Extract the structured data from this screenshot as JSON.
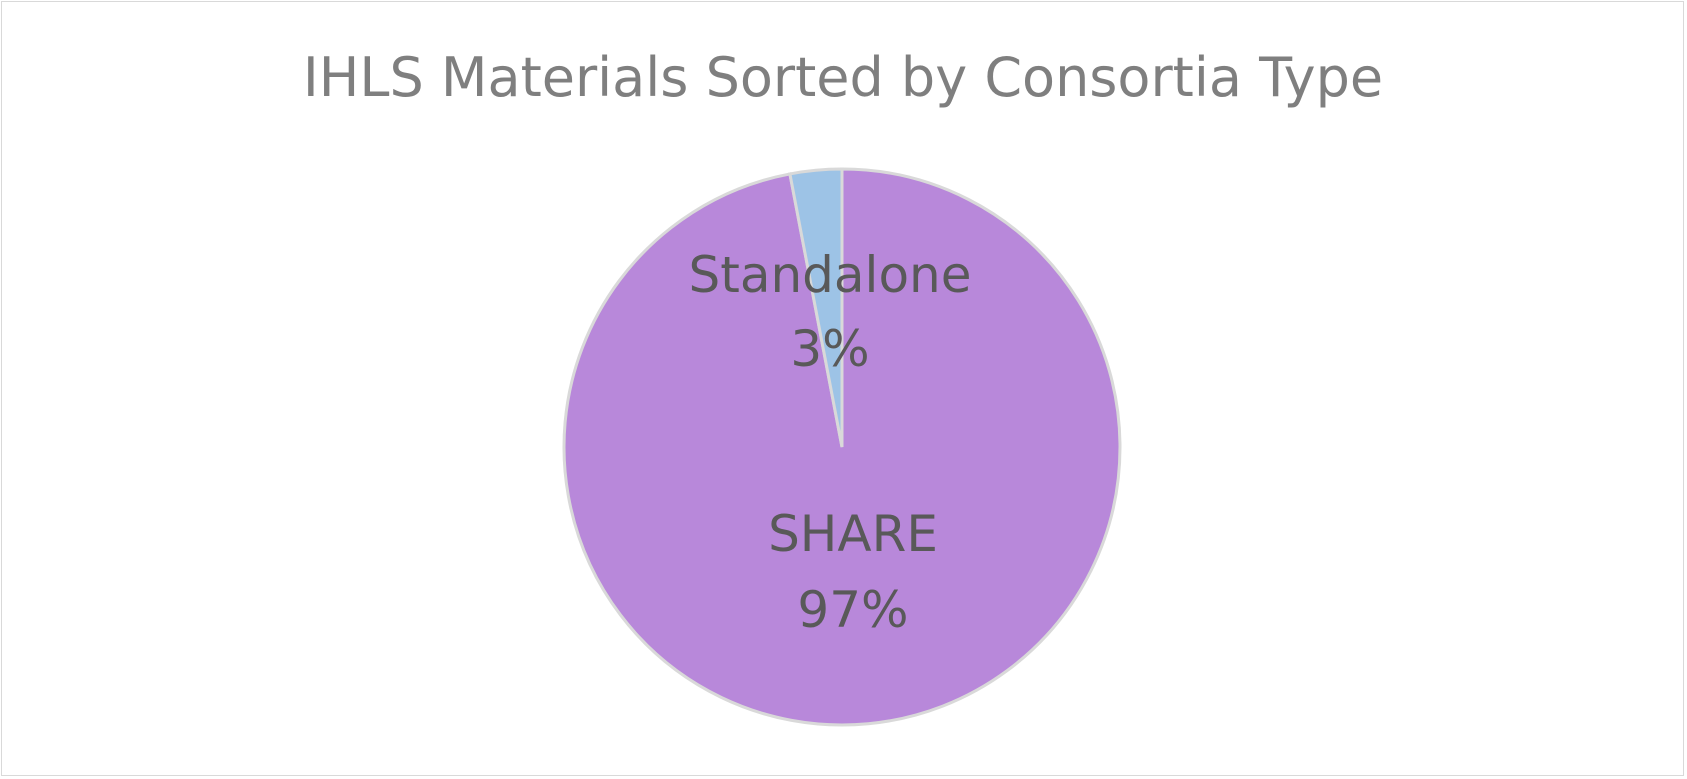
{
  "chart_data": {
    "type": "pie",
    "title": "IHLS Materials Sorted by Consortia Type",
    "categories": [
      "SHARE",
      "Standalone"
    ],
    "values": [
      97,
      3
    ],
    "unit": "%",
    "data_labels": [
      "97%",
      "3%"
    ],
    "colors": [
      "#b888da",
      "#9dc3e6"
    ],
    "slice_border_color": "#d9d9d9",
    "title_color": "#7f7f7f",
    "label_color": "#595959",
    "legend": "none",
    "start_angle": "12 o'clock, clockwise"
  }
}
